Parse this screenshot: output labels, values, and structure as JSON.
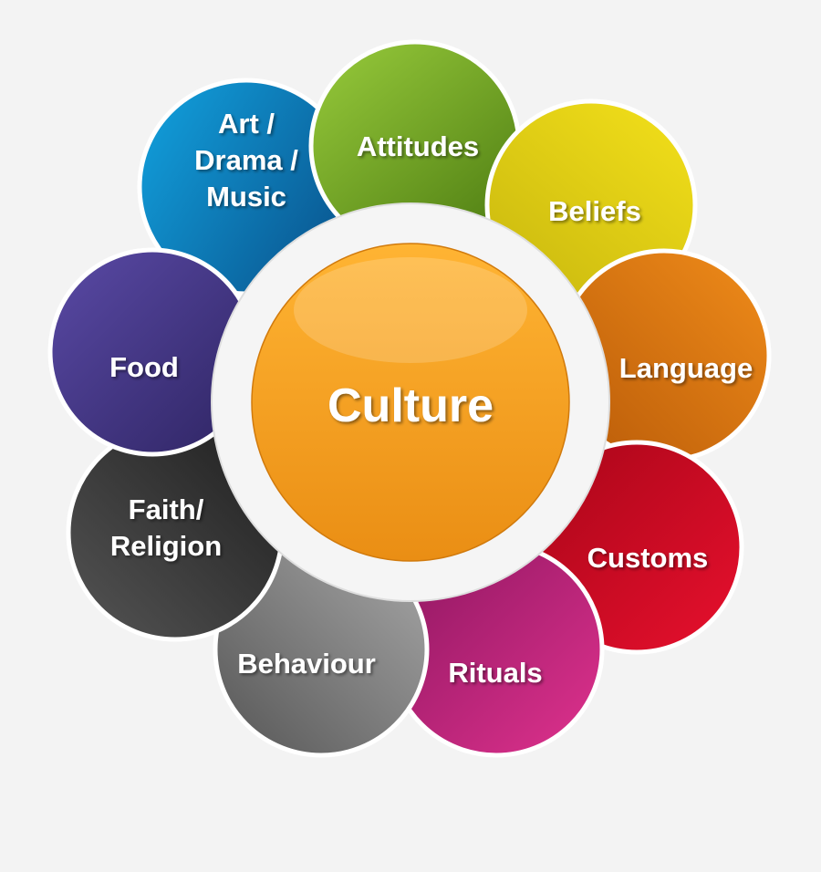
{
  "center": {
    "label": "Culture",
    "color_light": "#ffb433",
    "color_dark": "#ea8e14"
  },
  "petals": [
    {
      "id": "attitudes",
      "lines": [
        "Attitudes"
      ],
      "color_light": "#95c83a",
      "color_dark": "#4e7d12"
    },
    {
      "id": "beliefs",
      "lines": [
        "Beliefs"
      ],
      "color_light": "#f2df1a",
      "color_dark": "#c8b70e"
    },
    {
      "id": "language",
      "lines": [
        "Language"
      ],
      "color_light": "#f08c1a",
      "color_dark": "#b85a08"
    },
    {
      "id": "customs",
      "lines": [
        "Customs"
      ],
      "color_light": "#e8102e",
      "color_dark": "#a80618"
    },
    {
      "id": "rituals",
      "lines": [
        "Rituals"
      ],
      "color_light": "#e0328e",
      "color_dark": "#8c1660"
    },
    {
      "id": "behaviour",
      "lines": [
        "Behaviour"
      ],
      "color_light": "#a8a8a8",
      "color_dark": "#555555"
    },
    {
      "id": "faith-religion",
      "lines": [
        "Faith/",
        "Religion"
      ],
      "color_light": "#555555",
      "color_dark": "#1e1e1e"
    },
    {
      "id": "food",
      "lines": [
        "Food"
      ],
      "color_light": "#5a4aa6",
      "color_dark": "#2e2462"
    },
    {
      "id": "art-drama-music",
      "lines": [
        "Art /",
        "Drama /",
        "Music"
      ],
      "color_light": "#12a3e0",
      "color_dark": "#0a5a94"
    }
  ]
}
